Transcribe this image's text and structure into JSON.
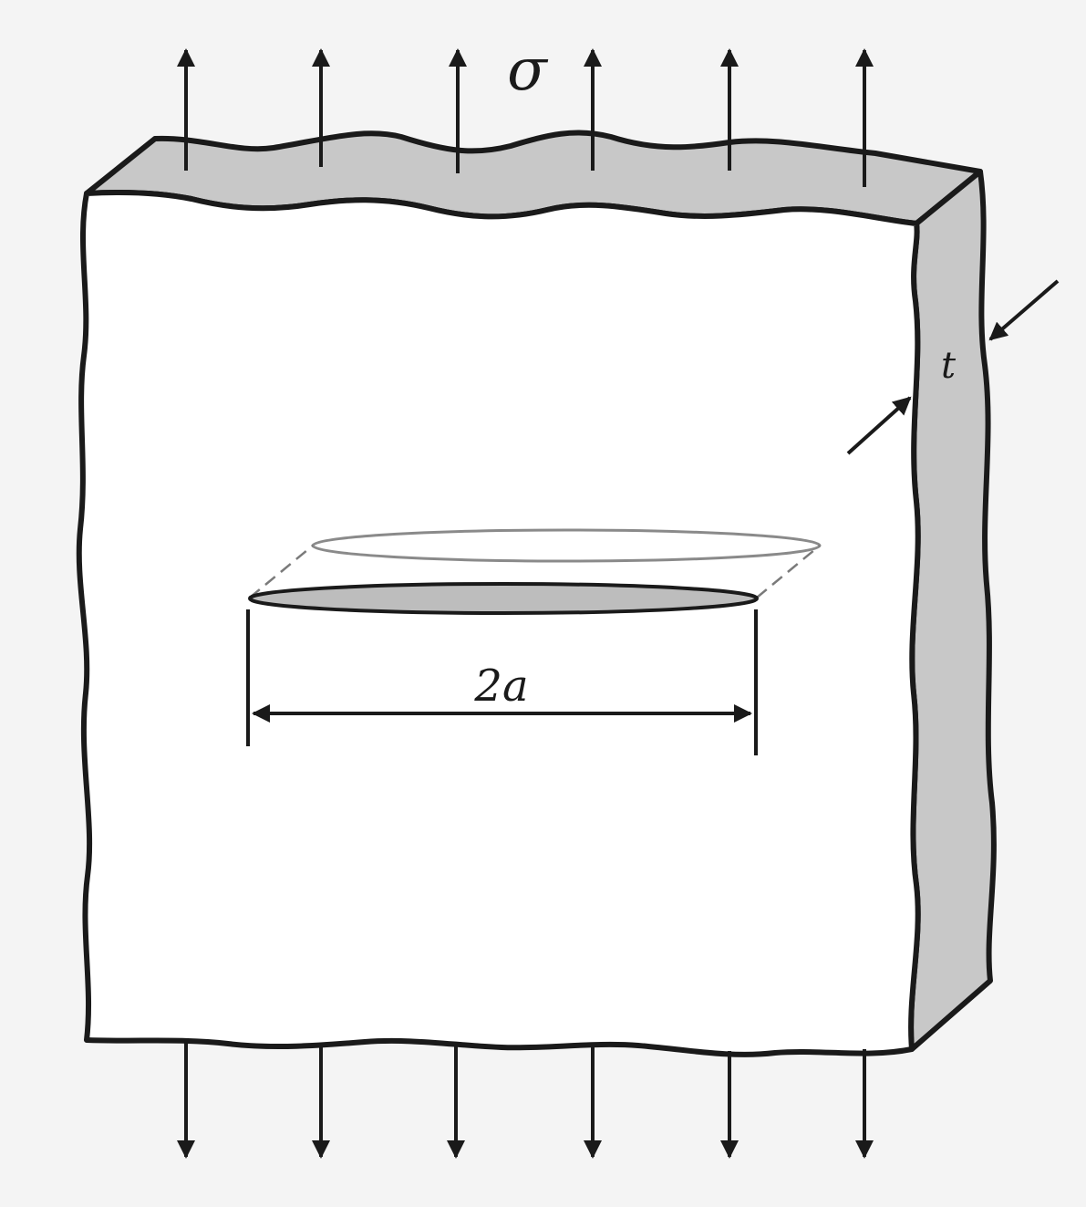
{
  "labels": {
    "stress": "σ",
    "thickness": "t",
    "crack_length": "2a"
  },
  "colors": {
    "background": "#f4f4f4",
    "plate_face": "#ffffff",
    "plate_edge_gray": "#c8c8c8",
    "crack_fill": "#bdbdbd",
    "ink": "#1a1a1a"
  },
  "arrows": {
    "top_count": 6,
    "bottom_count": 6
  }
}
